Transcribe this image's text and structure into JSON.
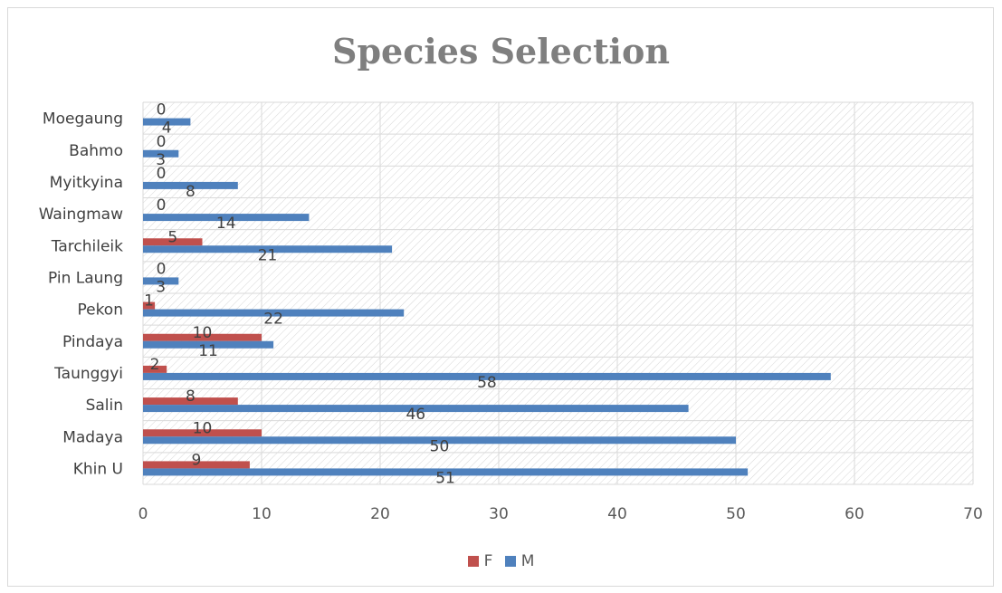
{
  "chart_data": {
    "type": "bar",
    "orientation": "horizontal",
    "title": "Species Selection",
    "categories": [
      "Khin U",
      "Madaya",
      "Salin",
      "Taunggyi",
      "Pindaya",
      "Pekon",
      "Pin Laung",
      "Tarchileik",
      "Waingmaw",
      "Myitkyina",
      "Bahmo",
      "Moegaung"
    ],
    "series": [
      {
        "name": "F",
        "color": "#c0504d",
        "values": [
          9,
          10,
          8,
          2,
          10,
          1,
          0,
          5,
          0,
          0,
          0,
          0
        ]
      },
      {
        "name": "M",
        "color": "#4f81bd",
        "values": [
          51,
          50,
          46,
          58,
          11,
          22,
          3,
          21,
          14,
          8,
          3,
          4
        ]
      }
    ],
    "xlim": [
      0,
      70
    ],
    "xticks": [
      0,
      10,
      20,
      30,
      40,
      50,
      60,
      70
    ],
    "xlabel": "",
    "ylabel": "",
    "grid": true,
    "data_labels": true,
    "legend_position": "bottom"
  }
}
